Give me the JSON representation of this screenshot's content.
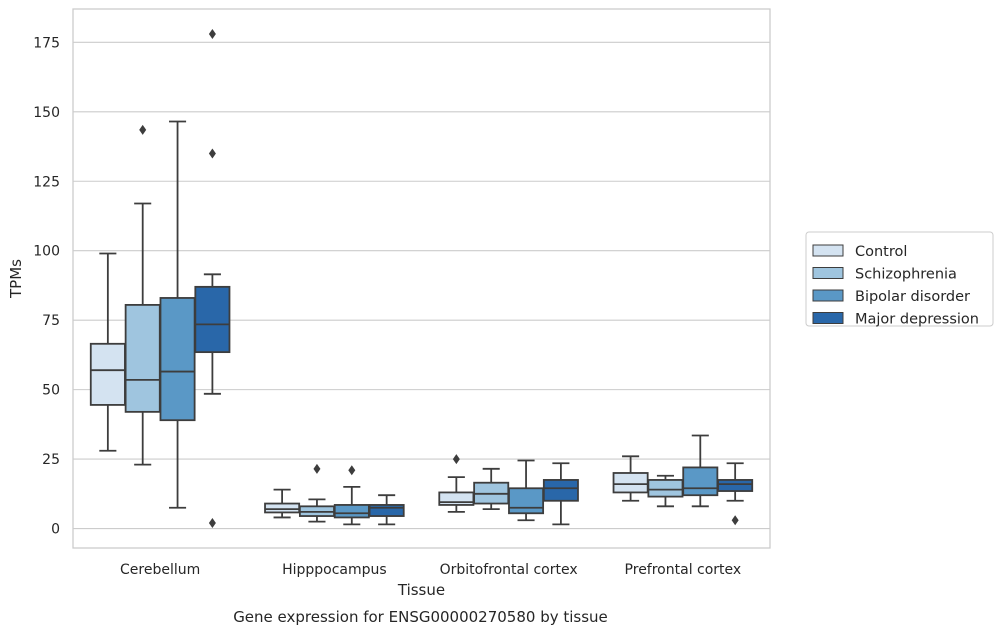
{
  "chart_data": {
    "type": "boxplot",
    "title": "",
    "caption": "Gene expression for ENSG00000270580 by tissue",
    "xlabel": "Tissue",
    "ylabel": "TPMs",
    "ylim": [
      -7,
      187
    ],
    "yticks": [
      0,
      25,
      50,
      75,
      100,
      125,
      150,
      175
    ],
    "grid": true,
    "legend_position": "right",
    "categories": [
      "Cerebellum",
      "Hipppocampus",
      "Orbitofrontal cortex",
      "Prefrontal cortex"
    ],
    "series": [
      {
        "name": "Control",
        "color": "#d4e3f1",
        "boxes": [
          {
            "whislo": 28,
            "q1": 44.5,
            "med": 57,
            "q3": 66.5,
            "whishi": 99,
            "fliers": []
          },
          {
            "whislo": 4,
            "q1": 5.8,
            "med": 7,
            "q3": 9,
            "whishi": 14,
            "fliers": []
          },
          {
            "whislo": 6,
            "q1": 8.5,
            "med": 9.5,
            "q3": 13,
            "whishi": 18.5,
            "fliers": [
              25
            ]
          },
          {
            "whislo": 10,
            "q1": 13,
            "med": 16,
            "q3": 20,
            "whishi": 26,
            "fliers": []
          }
        ]
      },
      {
        "name": "Schizophrenia",
        "color": "#9fc5df",
        "boxes": [
          {
            "whislo": 23,
            "q1": 42,
            "med": 53.5,
            "q3": 80.5,
            "whishi": 117,
            "fliers": [
              143.5
            ]
          },
          {
            "whislo": 2.5,
            "q1": 4.5,
            "med": 6,
            "q3": 8,
            "whishi": 10.5,
            "fliers": [
              21.5
            ]
          },
          {
            "whislo": 7,
            "q1": 9,
            "med": 12.5,
            "q3": 16.5,
            "whishi": 21.5,
            "fliers": []
          },
          {
            "whislo": 8,
            "q1": 11.5,
            "med": 14,
            "q3": 17.5,
            "whishi": 19,
            "fliers": []
          }
        ]
      },
      {
        "name": "Bipolar disorder",
        "color": "#5a98c6",
        "boxes": [
          {
            "whislo": 7.5,
            "q1": 39,
            "med": 56.5,
            "q3": 83,
            "whishi": 146.5,
            "fliers": []
          },
          {
            "whislo": 1.5,
            "q1": 4,
            "med": 5.5,
            "q3": 8.5,
            "whishi": 15,
            "fliers": [
              21
            ]
          },
          {
            "whislo": 3,
            "q1": 5.5,
            "med": 7.5,
            "q3": 14.5,
            "whishi": 24.5,
            "fliers": []
          },
          {
            "whislo": 8,
            "q1": 12,
            "med": 14.5,
            "q3": 22,
            "whishi": 33.5,
            "fliers": []
          }
        ]
      },
      {
        "name": "Major depression",
        "color": "#2967a9",
        "boxes": [
          {
            "whislo": 48.5,
            "q1": 63.5,
            "med": 73.5,
            "q3": 87,
            "whishi": 91.5,
            "fliers": [
              178,
              135,
              2
            ]
          },
          {
            "whislo": 1.5,
            "q1": 4.5,
            "med": 7.5,
            "q3": 8.5,
            "whishi": 12,
            "fliers": []
          },
          {
            "whislo": 1.5,
            "q1": 10,
            "med": 14.5,
            "q3": 17.5,
            "whishi": 23.5,
            "fliers": []
          },
          {
            "whislo": 10,
            "q1": 13.5,
            "med": 16,
            "q3": 17.5,
            "whishi": 23.5,
            "fliers": [
              3
            ]
          }
        ]
      }
    ]
  }
}
